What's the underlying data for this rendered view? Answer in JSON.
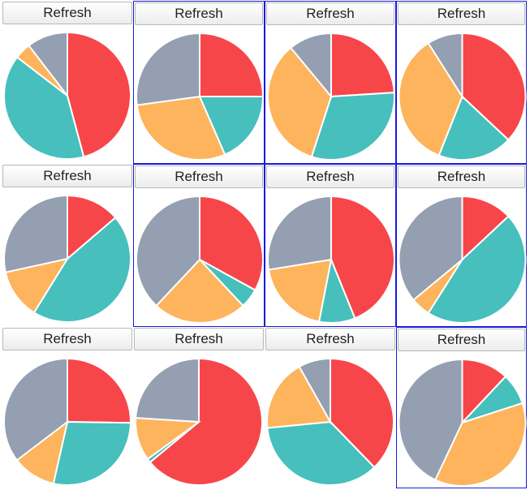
{
  "button_label": "Refresh",
  "palette": {
    "red": "#f7464a",
    "teal": "#46bfbd",
    "orange": "#fdb45c",
    "gray": "#949fb1",
    "slice_stroke": "#ffffff",
    "border": "#1a1adb"
  },
  "chart_data": [
    {
      "type": "pie",
      "values": [
        44,
        0,
        38,
        4,
        0,
        10
      ],
      "colors": [
        "red",
        "red",
        "teal",
        "orange",
        "orange",
        "gray"
      ]
    },
    {
      "type": "pie",
      "values": [
        23,
        17,
        27,
        25
      ],
      "colors": [
        "red",
        "teal",
        "orange",
        "gray"
      ]
    },
    {
      "type": "pie",
      "values": [
        24,
        31,
        34,
        11
      ],
      "colors": [
        "red",
        "teal",
        "orange",
        "gray"
      ]
    },
    {
      "type": "pie",
      "values": [
        37,
        19,
        35,
        9
      ],
      "colors": [
        "red",
        "teal",
        "orange",
        "gray"
      ]
    },
    {
      "type": "pie",
      "values": [
        14,
        46,
        13,
        29
      ],
      "colors": [
        "red",
        "teal",
        "orange",
        "gray"
      ]
    },
    {
      "type": "pie",
      "values": [
        33,
        5,
        24,
        38
      ],
      "colors": [
        "red",
        "teal",
        "orange",
        "gray"
      ]
    },
    {
      "type": "pie",
      "values": [
        43,
        9,
        19,
        27
      ],
      "colors": [
        "red",
        "teal",
        "orange",
        "gray"
      ]
    },
    {
      "type": "pie",
      "values": [
        13,
        46,
        5,
        36
      ],
      "colors": [
        "red",
        "teal",
        "orange",
        "gray"
      ]
    },
    {
      "type": "pie",
      "values": [
        25,
        28,
        11,
        35
      ],
      "colors": [
        "red",
        "teal",
        "orange",
        "gray"
      ]
    },
    {
      "type": "pie",
      "values": [
        64,
        1,
        11,
        24
      ],
      "colors": [
        "red",
        "teal",
        "orange",
        "gray"
      ]
    },
    {
      "type": "pie",
      "values": [
        37,
        35,
        18,
        8
      ],
      "colors": [
        "red",
        "teal",
        "orange",
        "gray"
      ]
    },
    {
      "type": "pie",
      "values": [
        12,
        8,
        37,
        43
      ],
      "colors": [
        "red",
        "teal",
        "orange",
        "gray"
      ]
    }
  ]
}
